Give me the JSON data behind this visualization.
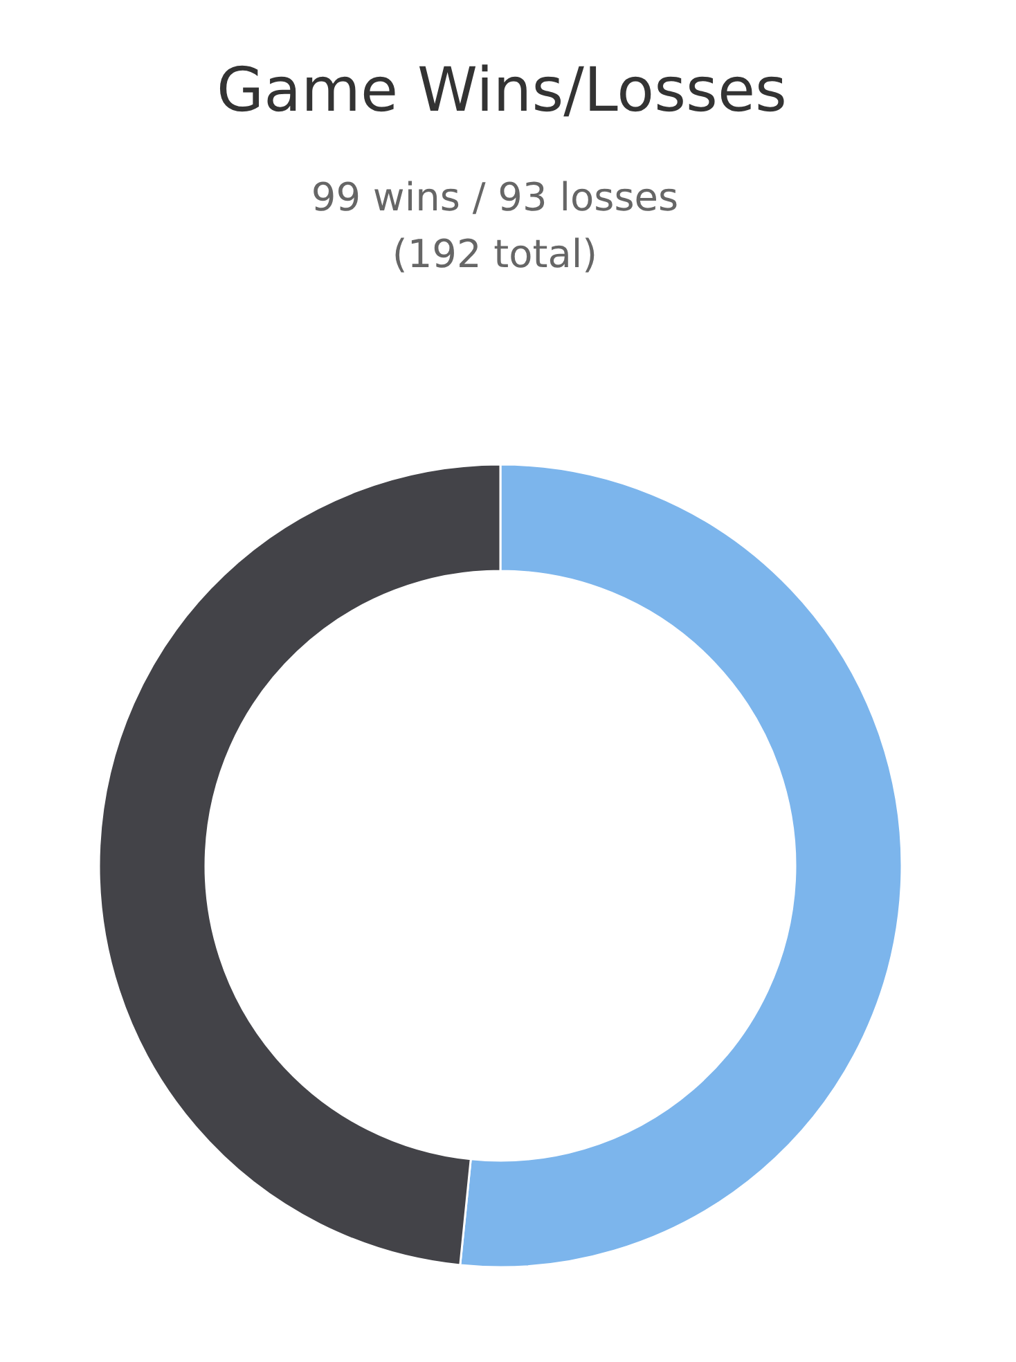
{
  "chart_data": {
    "type": "donut",
    "title": "Game Wins/Losses",
    "subtitle": "99 wins / 93 losses\n(192 total)",
    "categories": [
      null,
      null
    ],
    "values": [
      51.6,
      48.4
    ],
    "colors": [
      "#7cb5ec",
      "#434348"
    ]
  }
}
